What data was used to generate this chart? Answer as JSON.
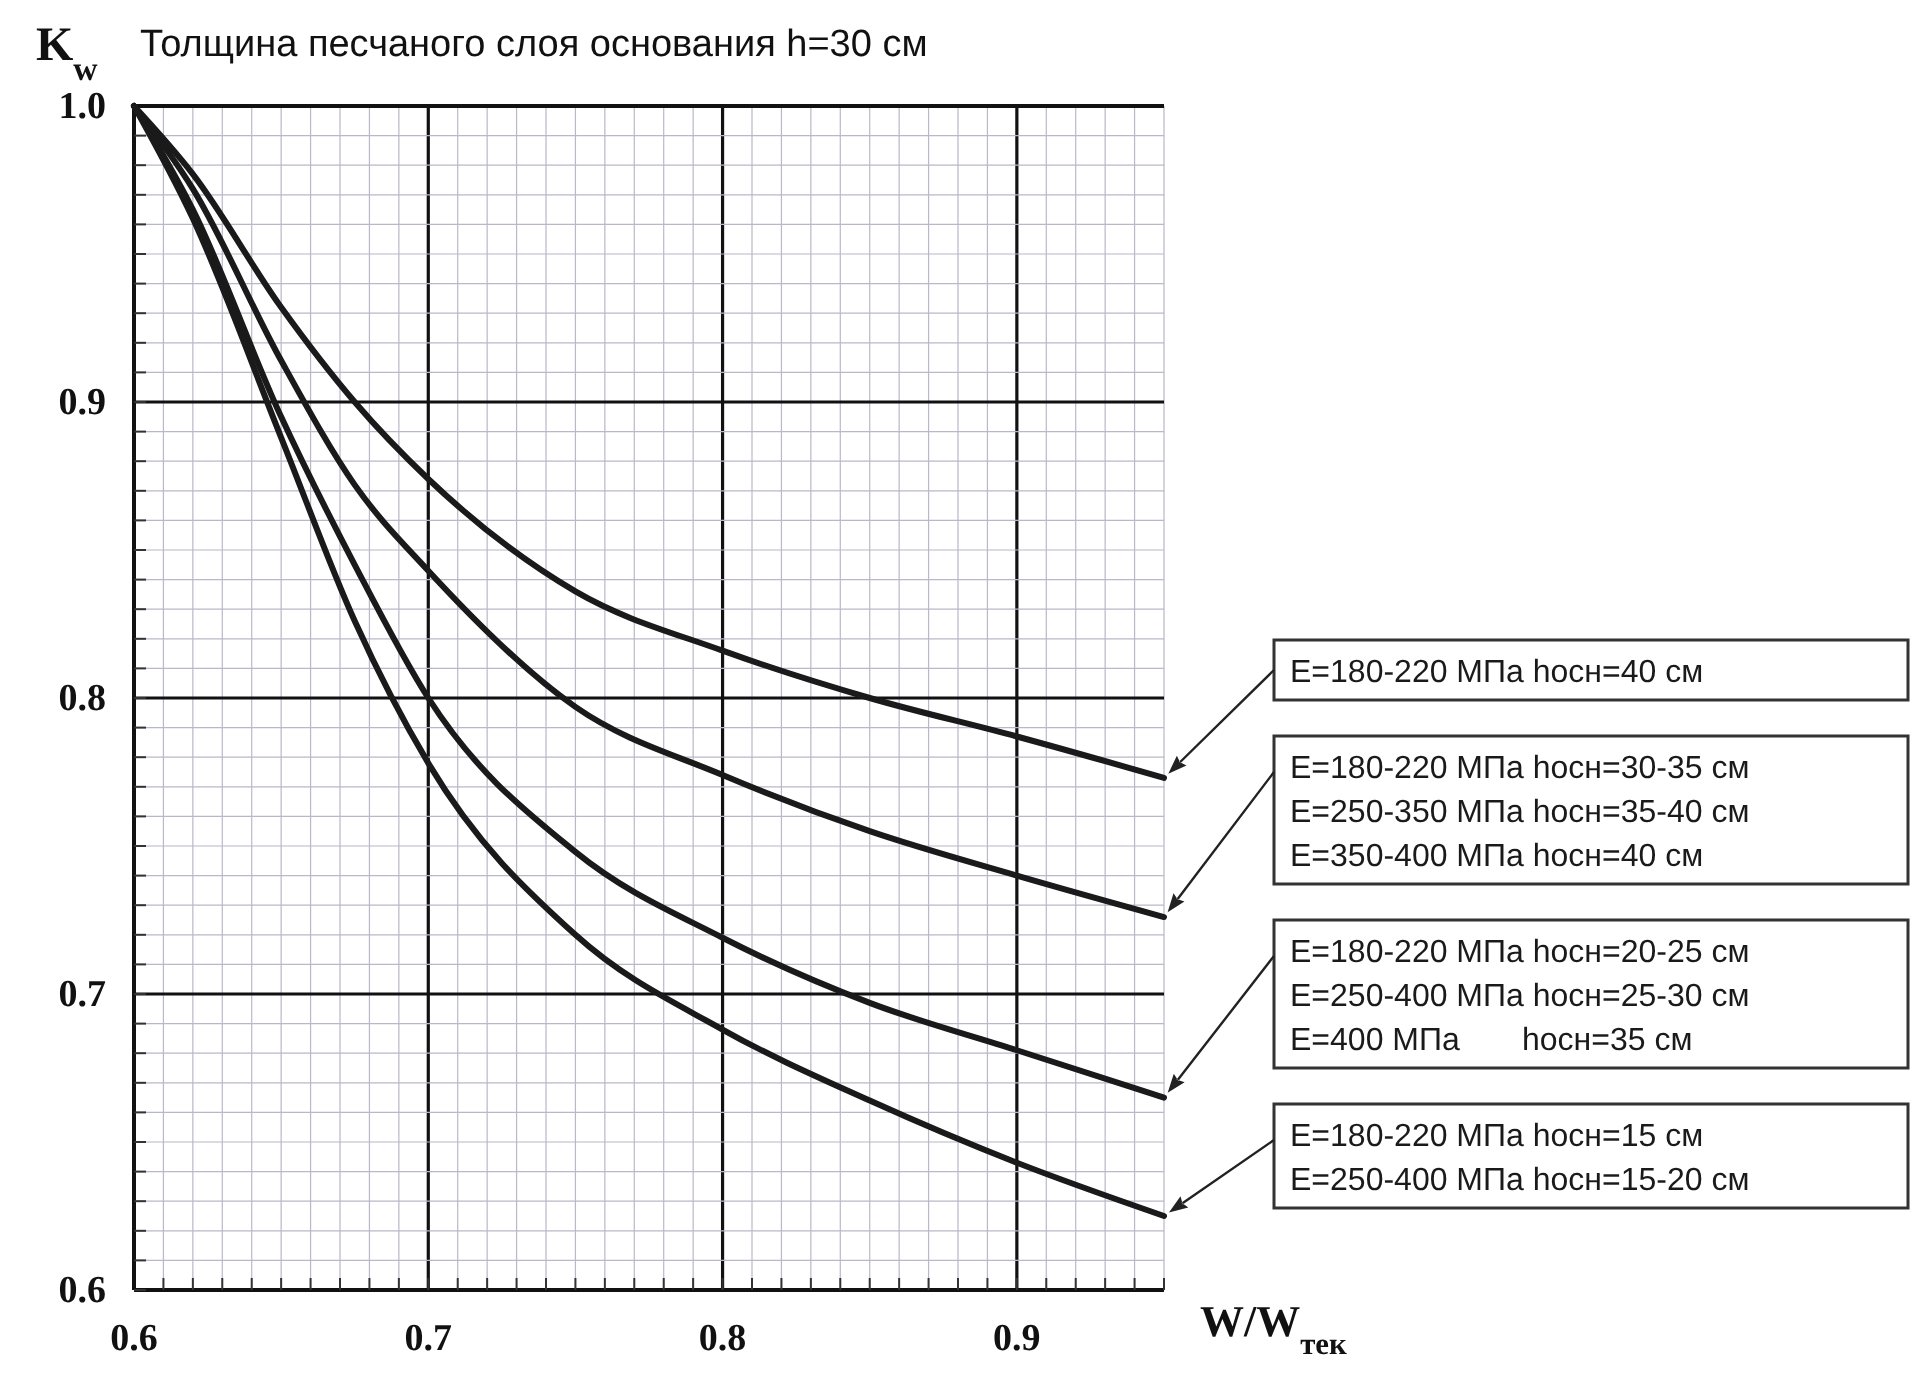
{
  "chart_data": {
    "type": "line",
    "title": "Толщина песчаного слоя основания h=30 см",
    "xlabel": "W/W$_{тек}$",
    "ylabel": "K$_{w}$",
    "x": [
      0.6,
      0.62,
      0.65,
      0.675,
      0.7,
      0.75,
      0.8,
      0.85,
      0.9,
      0.95
    ],
    "series": [
      {
        "name": "E=180-220 МПа hосн=40 см",
        "color": "#1a1a1a",
        "values": [
          1.0,
          0.977,
          0.932,
          0.9,
          0.874,
          0.836,
          0.816,
          0.8,
          0.787,
          0.773
        ]
      },
      {
        "name": "E=180-220 МПа hосн=30-35 см\nE=250-350 МПа hосн=35-40 см\nE=350-400 МПа hосн=40 см",
        "color": "#1a1a1a",
        "values": [
          1.0,
          0.972,
          0.914,
          0.872,
          0.843,
          0.797,
          0.774,
          0.755,
          0.74,
          0.726
        ]
      },
      {
        "name": "E=180-220 МПа hосн=20-25 см\nE=250-400 МПа hосн=25-30 см\nE=400 МПа       hосн=35 см",
        "color": "#1a1a1a",
        "values": [
          1.0,
          0.965,
          0.895,
          0.845,
          0.8,
          0.748,
          0.719,
          0.697,
          0.681,
          0.665
        ]
      },
      {
        "name": "E=180-220 МПа hосн=15 см\nE=250-400 МПа hосн=15-20 см",
        "color": "#1a1a1a",
        "values": [
          1.0,
          0.962,
          0.888,
          0.826,
          0.778,
          0.72,
          0.688,
          0.664,
          0.643,
          0.625
        ]
      }
    ],
    "xlim": [
      0.6,
      0.95
    ],
    "ylim": [
      0.6,
      1.0
    ],
    "xticks": [
      0.6,
      {
        "value": 0.61,
        "label": null
      },
      {
        "value": 0.62,
        "label": null
      },
      {
        "value": 0.63,
        "label": null
      },
      {
        "value": 0.64,
        "label": null
      },
      {
        "value": 0.65,
        "label": null
      },
      {
        "value": 0.66,
        "label": null
      },
      {
        "value": 0.67,
        "label": null
      },
      {
        "value": 0.68,
        "label": null
      },
      {
        "value": 0.69,
        "label": null
      },
      0.7,
      {
        "value": 0.71,
        "label": null
      },
      {
        "value": 0.72,
        "label": null
      },
      {
        "value": 0.73,
        "label": null
      },
      {
        "value": 0.74,
        "label": null
      },
      {
        "value": 0.75,
        "label": null
      },
      {
        "value": 0.76,
        "label": null
      },
      {
        "value": 0.77,
        "label": null
      },
      {
        "value": 0.78,
        "label": null
      },
      {
        "value": 0.79,
        "label": null
      },
      0.8,
      {
        "value": 0.81,
        "label": null
      },
      {
        "value": 0.82,
        "label": null
      },
      {
        "value": 0.83,
        "label": null
      },
      {
        "value": 0.84,
        "label": null
      },
      {
        "value": 0.85,
        "label": null
      },
      {
        "value": 0.86,
        "label": null
      },
      {
        "value": 0.87,
        "label": null
      },
      {
        "value": 0.88,
        "label": null
      },
      {
        "value": 0.89,
        "label": null
      },
      0.9,
      {
        "value": 0.91,
        "label": null
      },
      {
        "value": 0.92,
        "label": null
      },
      {
        "value": 0.93,
        "label": null
      },
      {
        "value": 0.94,
        "label": null
      },
      {
        "value": 0.95,
        "label": null
      }
    ],
    "yticks": [
      0.6,
      {
        "value": 0.61,
        "label": null
      },
      {
        "value": 0.62,
        "label": null
      },
      {
        "value": 0.63,
        "label": null
      },
      {
        "value": 0.64,
        "label": null
      },
      {
        "value": 0.65,
        "label": null
      },
      {
        "value": 0.66,
        "label": null
      },
      {
        "value": 0.67,
        "label": null
      },
      {
        "value": 0.68,
        "label": null
      },
      {
        "value": 0.69,
        "label": null
      },
      0.7,
      {
        "value": 0.71,
        "label": null
      },
      {
        "value": 0.72,
        "label": null
      },
      {
        "value": 0.73,
        "label": null
      },
      {
        "value": 0.74,
        "label": null
      },
      {
        "value": 0.75,
        "label": null
      },
      {
        "value": 0.76,
        "label": null
      },
      {
        "value": 0.77,
        "label": null
      },
      {
        "value": 0.78,
        "label": null
      },
      {
        "value": 0.79,
        "label": null
      },
      0.8,
      {
        "value": 0.81,
        "label": null
      },
      {
        "value": 0.82,
        "label": null
      },
      {
        "value": 0.83,
        "label": null
      },
      {
        "value": 0.84,
        "label": null
      },
      {
        "value": 0.85,
        "label": null
      },
      {
        "value": 0.86,
        "label": null
      },
      {
        "value": 0.87,
        "label": null
      },
      {
        "value": 0.88,
        "label": null
      },
      {
        "value": 0.89,
        "label": null
      },
      0.9,
      {
        "value": 0.91,
        "label": null
      },
      {
        "value": 0.92,
        "label": null
      },
      {
        "value": 0.93,
        "label": null
      },
      {
        "value": 0.94,
        "label": null
      },
      {
        "value": 0.95,
        "label": null
      },
      {
        "value": 0.96,
        "label": null
      },
      {
        "value": 0.97,
        "label": null
      },
      {
        "value": 0.98,
        "label": null
      },
      {
        "value": 0.99,
        "label": null
      },
      {
        "value": 1.0,
        "label": "1.0"
      }
    ],
    "grid": true,
    "line_style": "solid",
    "marker": "none"
  }
}
